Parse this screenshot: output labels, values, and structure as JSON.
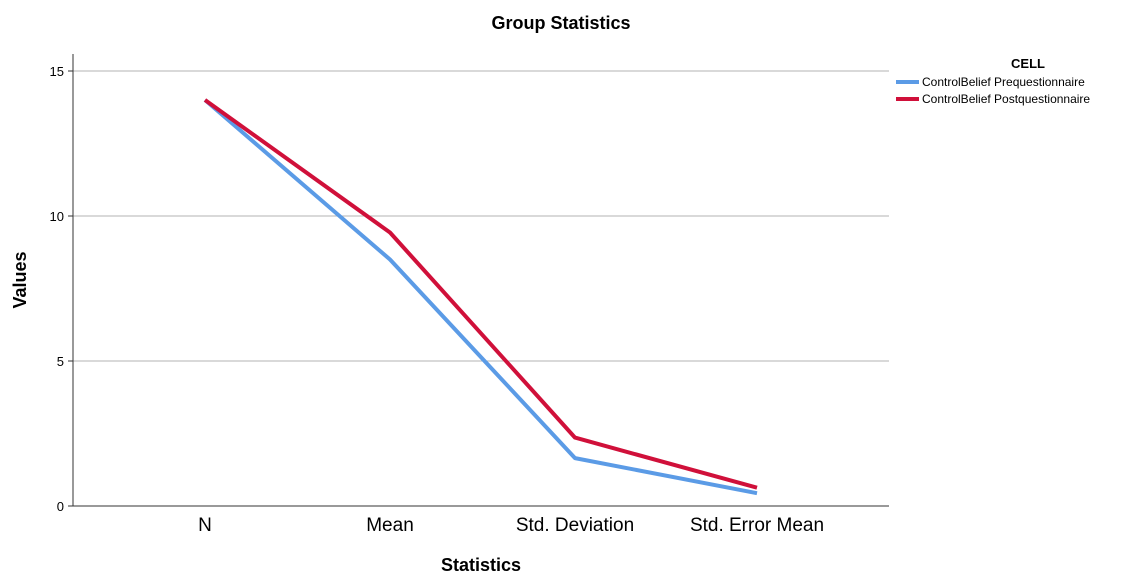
{
  "chart_data": {
    "type": "line",
    "title": "Group Statistics",
    "xlabel": "Statistics",
    "ylabel": "Values",
    "categories": [
      "N",
      "Mean",
      "Std. Deviation",
      "Std. Error Mean"
    ],
    "ylim": [
      0,
      15
    ],
    "yticks": [
      0,
      5,
      10,
      15
    ],
    "grid": true,
    "legend": {
      "title": "CELL",
      "placement": "top-right"
    },
    "series": [
      {
        "name": "ControlBelief Prequestionnaire",
        "color": "#5B9BE6",
        "values": [
          14,
          8.5,
          1.65,
          0.44
        ]
      },
      {
        "name": "ControlBelief Postquestionnaire",
        "color": "#D0103A",
        "values": [
          14,
          9.43,
          2.36,
          0.63
        ]
      }
    ]
  }
}
